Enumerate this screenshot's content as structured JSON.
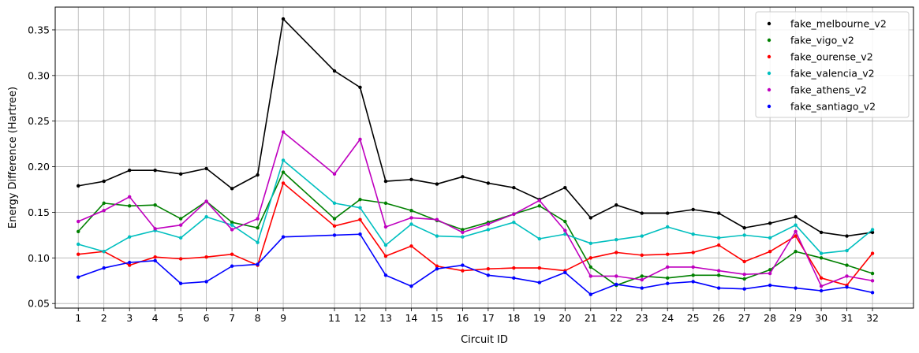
{
  "chart_data": {
    "type": "line",
    "title": "",
    "xlabel": "Circuit ID",
    "ylabel": "Energy Difference (Hartree)",
    "x": [
      1,
      2,
      3,
      4,
      5,
      6,
      7,
      8,
      9,
      11,
      12,
      13,
      14,
      15,
      16,
      17,
      18,
      19,
      20,
      21,
      22,
      23,
      24,
      25,
      26,
      27,
      28,
      29,
      30,
      31,
      32
    ],
    "xticks": [
      "1",
      "2",
      "3",
      "4",
      "5",
      "6",
      "7",
      "8",
      "9",
      "11",
      "12",
      "13",
      "14",
      "15",
      "16",
      "17",
      "18",
      "19",
      "20",
      "21",
      "22",
      "23",
      "24",
      "25",
      "26",
      "27",
      "28",
      "29",
      "30",
      "31",
      "32"
    ],
    "xlim": [
      0.1,
      33.6
    ],
    "ylim": [
      0.045,
      0.375
    ],
    "yticks": [
      0.05,
      0.1,
      0.15,
      0.2,
      0.25,
      0.3,
      0.35
    ],
    "ytick_labels": [
      "0.05",
      "0.10",
      "0.15",
      "0.20",
      "0.25",
      "0.30",
      "0.35"
    ],
    "grid": true,
    "legend_position": "top-right",
    "series": [
      {
        "name": "fake_melbourne_v2",
        "color": "#000000",
        "values": [
          0.179,
          0.184,
          0.196,
          0.196,
          0.192,
          0.198,
          0.176,
          0.191,
          0.362,
          0.305,
          0.287,
          0.184,
          0.186,
          0.181,
          0.189,
          0.182,
          0.177,
          0.164,
          0.177,
          0.144,
          0.158,
          0.149,
          0.149,
          0.153,
          0.149,
          0.133,
          0.138,
          0.145,
          0.128,
          0.124,
          0.128
        ]
      },
      {
        "name": "fake_vigo_v2",
        "color": "#008000",
        "values": [
          0.129,
          0.16,
          0.157,
          0.158,
          0.143,
          0.162,
          0.139,
          0.133,
          0.194,
          0.143,
          0.164,
          0.16,
          0.152,
          0.141,
          0.131,
          0.139,
          0.148,
          0.157,
          0.14,
          0.09,
          0.07,
          0.08,
          0.078,
          0.081,
          0.081,
          0.077,
          0.087,
          0.107,
          0.1,
          0.092,
          0.083
        ]
      },
      {
        "name": "fake_ourense_v2",
        "color": "#ff0000",
        "values": [
          0.104,
          0.107,
          0.092,
          0.101,
          0.099,
          0.101,
          0.104,
          0.092,
          0.182,
          0.135,
          0.142,
          0.102,
          0.113,
          0.091,
          0.086,
          0.088,
          0.089,
          0.089,
          0.086,
          0.1,
          0.106,
          0.103,
          0.104,
          0.106,
          0.114,
          0.096,
          0.107,
          0.124,
          0.078,
          0.07,
          0.105
        ]
      },
      {
        "name": "fake_valencia_v2",
        "color": "#00bfbf",
        "values": [
          0.115,
          0.107,
          0.123,
          0.13,
          0.122,
          0.145,
          0.136,
          0.117,
          0.207,
          0.16,
          0.155,
          0.114,
          0.137,
          0.124,
          0.123,
          0.131,
          0.139,
          0.121,
          0.126,
          0.116,
          0.12,
          0.124,
          0.134,
          0.126,
          0.122,
          0.125,
          0.122,
          0.136,
          0.105,
          0.108,
          0.131
        ]
      },
      {
        "name": "fake_athens_v2",
        "color": "#bf00bf",
        "values": [
          0.14,
          0.152,
          0.167,
          0.132,
          0.136,
          0.162,
          0.131,
          0.143,
          0.238,
          0.192,
          0.23,
          0.134,
          0.144,
          0.142,
          0.128,
          0.137,
          0.148,
          0.163,
          0.13,
          0.08,
          0.08,
          0.076,
          0.09,
          0.09,
          0.086,
          0.082,
          0.083,
          0.129,
          0.069,
          0.08,
          0.075
        ]
      },
      {
        "name": "fake_santiago_v2",
        "color": "#0000ff",
        "values": [
          0.079,
          0.089,
          0.095,
          0.097,
          0.072,
          0.074,
          0.091,
          0.093,
          0.123,
          0.125,
          0.126,
          0.081,
          0.069,
          0.088,
          0.092,
          0.081,
          0.078,
          0.073,
          0.084,
          0.06,
          0.071,
          0.067,
          0.072,
          0.074,
          0.067,
          0.066,
          0.07,
          0.067,
          0.064,
          0.068,
          0.062
        ]
      }
    ]
  }
}
